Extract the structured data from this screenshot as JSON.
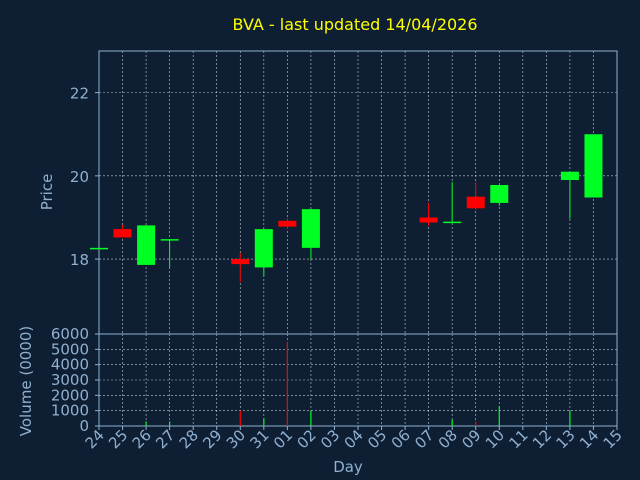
{
  "title": "BVA - last updated 14/04/2026",
  "colors": {
    "background": "#0f1f33",
    "title": "#ffff00",
    "axis_text": "#8fb0d0",
    "grid": "#ffffff",
    "up": "#00ff22",
    "down": "#ff0000"
  },
  "chart_data": [
    {
      "type": "candlestick",
      "ylabel": "Price",
      "ylim": [
        16.2,
        23.0
      ],
      "yticks": [
        18,
        20,
        22
      ],
      "grid": true,
      "x_dates": [
        "24",
        "25",
        "26",
        "27",
        "28",
        "29",
        "30",
        "31",
        "01",
        "02",
        "03",
        "04",
        "05",
        "06",
        "07",
        "08",
        "09",
        "10",
        "11",
        "12",
        "13",
        "14",
        "15"
      ],
      "candles": [
        {
          "x": "24",
          "open": 18.27,
          "high": 18.27,
          "low": 18.27,
          "close": 18.27
        },
        {
          "x": "25",
          "open": 18.72,
          "high": 18.82,
          "low": 18.52,
          "close": 18.52
        },
        {
          "x": "26",
          "open": 17.86,
          "high": 18.81,
          "low": 17.86,
          "close": 18.81
        },
        {
          "x": "27",
          "open": 18.46,
          "high": 18.48,
          "low": 17.8,
          "close": 18.48
        },
        {
          "x": "30",
          "open": 18.0,
          "high": 18.15,
          "low": 17.45,
          "close": 17.88
        },
        {
          "x": "31",
          "open": 17.8,
          "high": 18.72,
          "low": 17.58,
          "close": 18.72
        },
        {
          "x": "01",
          "open": 18.92,
          "high": 18.98,
          "low": 18.72,
          "close": 18.78
        },
        {
          "x": "02",
          "open": 18.27,
          "high": 19.2,
          "low": 18.0,
          "close": 19.2
        },
        {
          "x": "07",
          "open": 19.0,
          "high": 19.35,
          "low": 18.8,
          "close": 18.88
        },
        {
          "x": "08",
          "open": 18.88,
          "high": 19.85,
          "low": 18.88,
          "close": 18.9
        },
        {
          "x": "09",
          "open": 19.5,
          "high": 19.85,
          "low": 19.18,
          "close": 19.22
        },
        {
          "x": "10",
          "open": 19.35,
          "high": 19.78,
          "low": 19.28,
          "close": 19.78
        },
        {
          "x": "13",
          "open": 19.9,
          "high": 20.1,
          "low": 18.97,
          "close": 20.1
        },
        {
          "x": "14",
          "open": 19.48,
          "high": 21.0,
          "low": 19.48,
          "close": 21.0
        }
      ]
    },
    {
      "type": "bar",
      "ylabel": "Volume (0000)",
      "xlabel": "Day",
      "ylim": [
        0,
        6000
      ],
      "yticks": [
        0,
        1000,
        2000,
        3000,
        4000,
        5000,
        6000
      ],
      "grid": true,
      "bars": [
        {
          "x": "26",
          "value": 300,
          "color": "up"
        },
        {
          "x": "27",
          "value": 300,
          "color": "up"
        },
        {
          "x": "30",
          "value": 1000,
          "color": "down"
        },
        {
          "x": "31",
          "value": 500,
          "color": "up"
        },
        {
          "x": "01",
          "value": 5500,
          "color": "down"
        },
        {
          "x": "02",
          "value": 1000,
          "color": "up"
        },
        {
          "x": "08",
          "value": 400,
          "color": "up"
        },
        {
          "x": "09",
          "value": 300,
          "color": "down"
        },
        {
          "x": "10",
          "value": 1300,
          "color": "up"
        },
        {
          "x": "13",
          "value": 1000,
          "color": "up"
        }
      ]
    }
  ]
}
